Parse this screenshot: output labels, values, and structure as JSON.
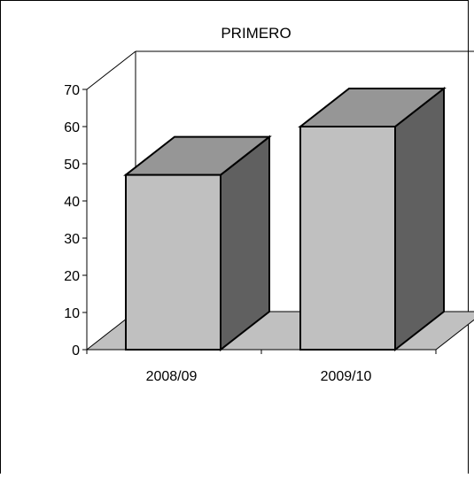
{
  "chart_data": {
    "type": "bar",
    "title": "PRIMERO",
    "categories": [
      "2008/09",
      "2009/10"
    ],
    "series": [
      {
        "values": [
          47,
          60
        ]
      }
    ],
    "ylim": [
      0,
      70
    ],
    "yticks": [
      0,
      10,
      20,
      30,
      40,
      50,
      60,
      70
    ],
    "xlabel": "",
    "ylabel": "",
    "grid": false,
    "legend": "none",
    "three_d": true
  },
  "colors": {
    "bar_front": "#c0c0c0",
    "bar_top": "#969696",
    "bar_side": "#606060",
    "floor": "#c0c0c0",
    "outline": "#000000",
    "background": "#ffffff"
  }
}
